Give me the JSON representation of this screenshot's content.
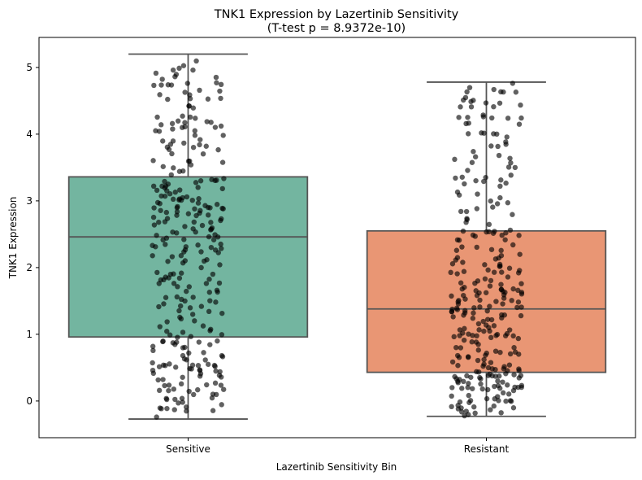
{
  "chart_data": {
    "type": "box",
    "title": "TNK1 Expression by Lazertinib Sensitivity",
    "subtitle": "(T-test p = 8.9372e-10)",
    "xlabel": "Lazertinib Sensitivity Bin",
    "ylabel": "TNK1 Expression",
    "ylim": [
      -0.55,
      5.45
    ],
    "yticks": [
      0,
      1,
      2,
      3,
      4,
      5
    ],
    "ytick_labels": [
      "0",
      "1",
      "2",
      "3",
      "4",
      "5"
    ],
    "grid": false,
    "legend": "none",
    "categories": [
      "Sensitive",
      "Resistant"
    ],
    "boxes": [
      {
        "category": "Sensitive",
        "color": "#73b5a0",
        "whisker_low": -0.27,
        "q1": 0.96,
        "median": 2.46,
        "q3": 3.36,
        "whisker_high": 5.2,
        "n_points": 300
      },
      {
        "category": "Resistant",
        "color": "#e99674",
        "whisker_low": -0.23,
        "q1": 0.43,
        "median": 1.38,
        "q3": 2.55,
        "whisker_high": 4.78,
        "n_points": 300
      }
    ],
    "point_color": "#000000"
  }
}
